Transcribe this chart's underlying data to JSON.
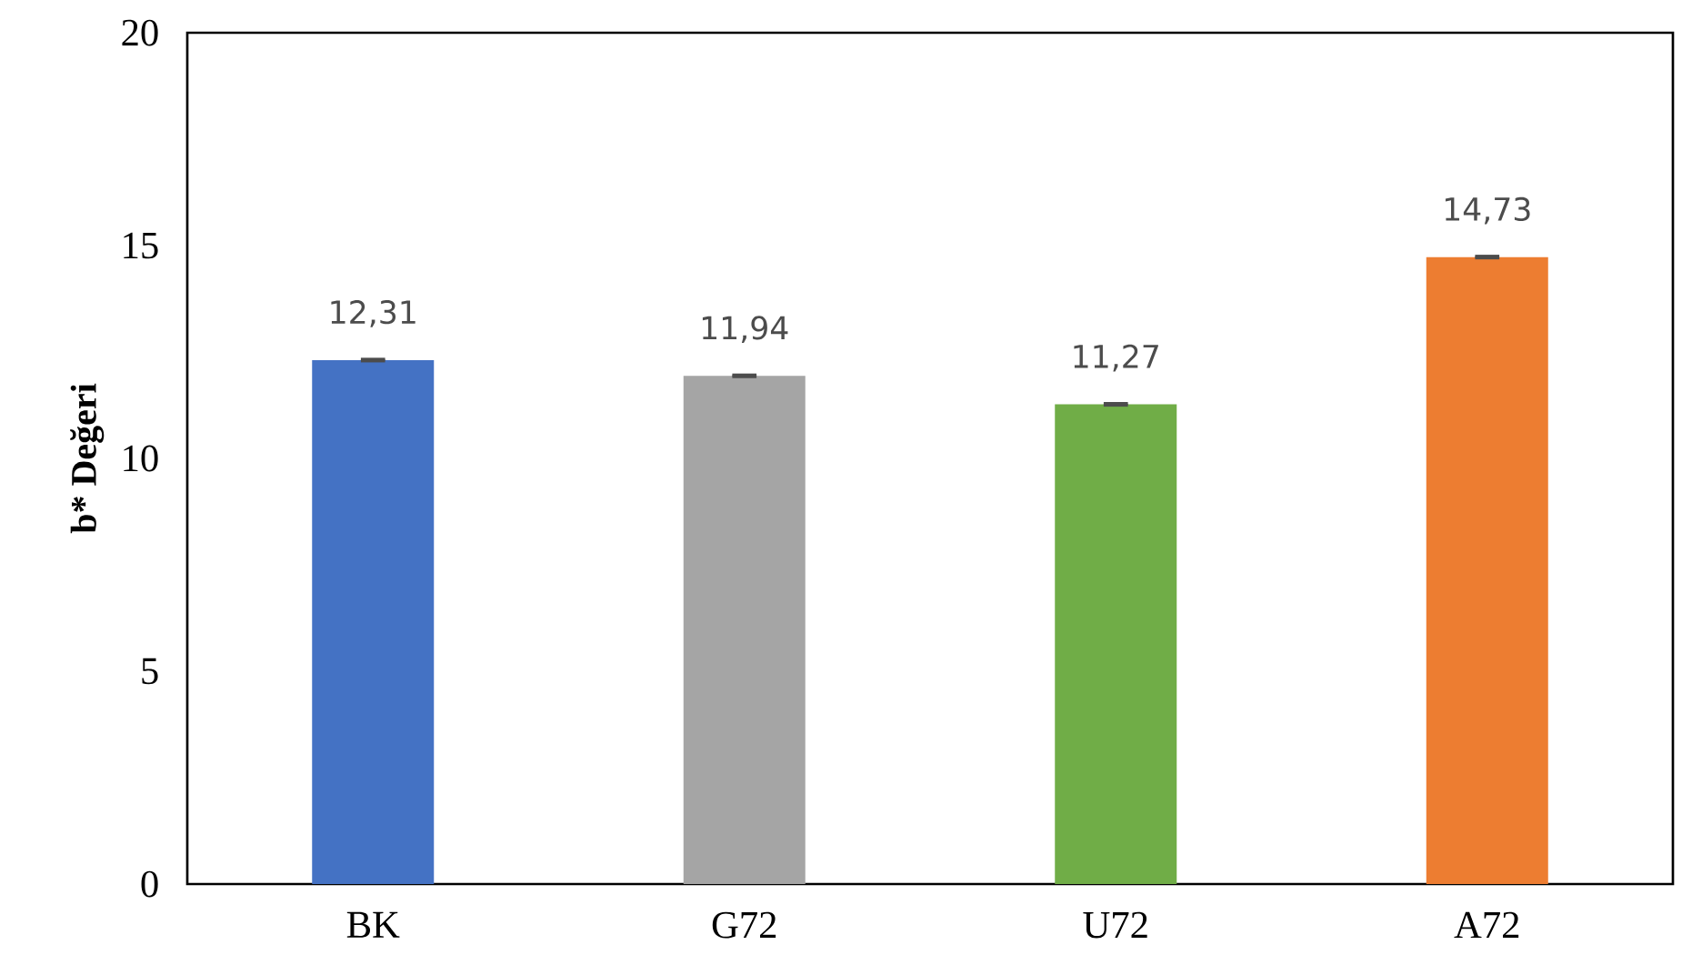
{
  "chart_data": {
    "type": "bar",
    "ylabel": "b* Değeri",
    "categories": [
      "BK",
      "G72",
      "U72",
      "A72"
    ],
    "values": [
      12.31,
      11.94,
      11.27,
      14.73
    ],
    "colors": [
      "#4472c4",
      "#a5a5a5",
      "#70ad47",
      "#ed7d31"
    ],
    "errors": [
      0.02,
      0.02,
      0.02,
      0.02
    ],
    "data_labels": true,
    "value_labels": [
      "12,31",
      "11,94",
      "11,27",
      "14,73"
    ],
    "ylim": [
      0,
      20
    ],
    "yticks": [
      0,
      5,
      10,
      15,
      20
    ],
    "grid": false
  }
}
